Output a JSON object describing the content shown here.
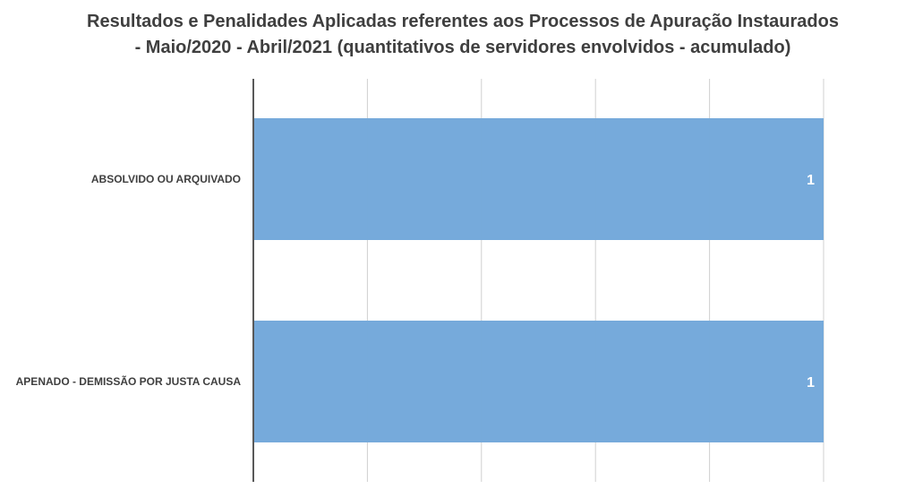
{
  "chart_data": {
    "type": "bar",
    "orientation": "horizontal",
    "title_lines": [
      "Resultados e Penalidades Aplicadas referentes aos Processos de Apuração Instaurados",
      "- Maio/2020 - Abril/2021 (quantitativos de servidores envolvidos - acumulado)"
    ],
    "categories": [
      "ABSOLVIDO OU ARQUIVADO",
      "APENADO - DEMISSÃO POR JUSTA CAUSA"
    ],
    "values": [
      1,
      1
    ],
    "data_labels": [
      "1",
      "1"
    ],
    "xlim": [
      0,
      1
    ],
    "grid": true,
    "legend": "none",
    "colors": {
      "bar": "#73a8da",
      "grid": "#d0d0d0",
      "axis": "#595959",
      "text": "#3f3f3f"
    }
  }
}
